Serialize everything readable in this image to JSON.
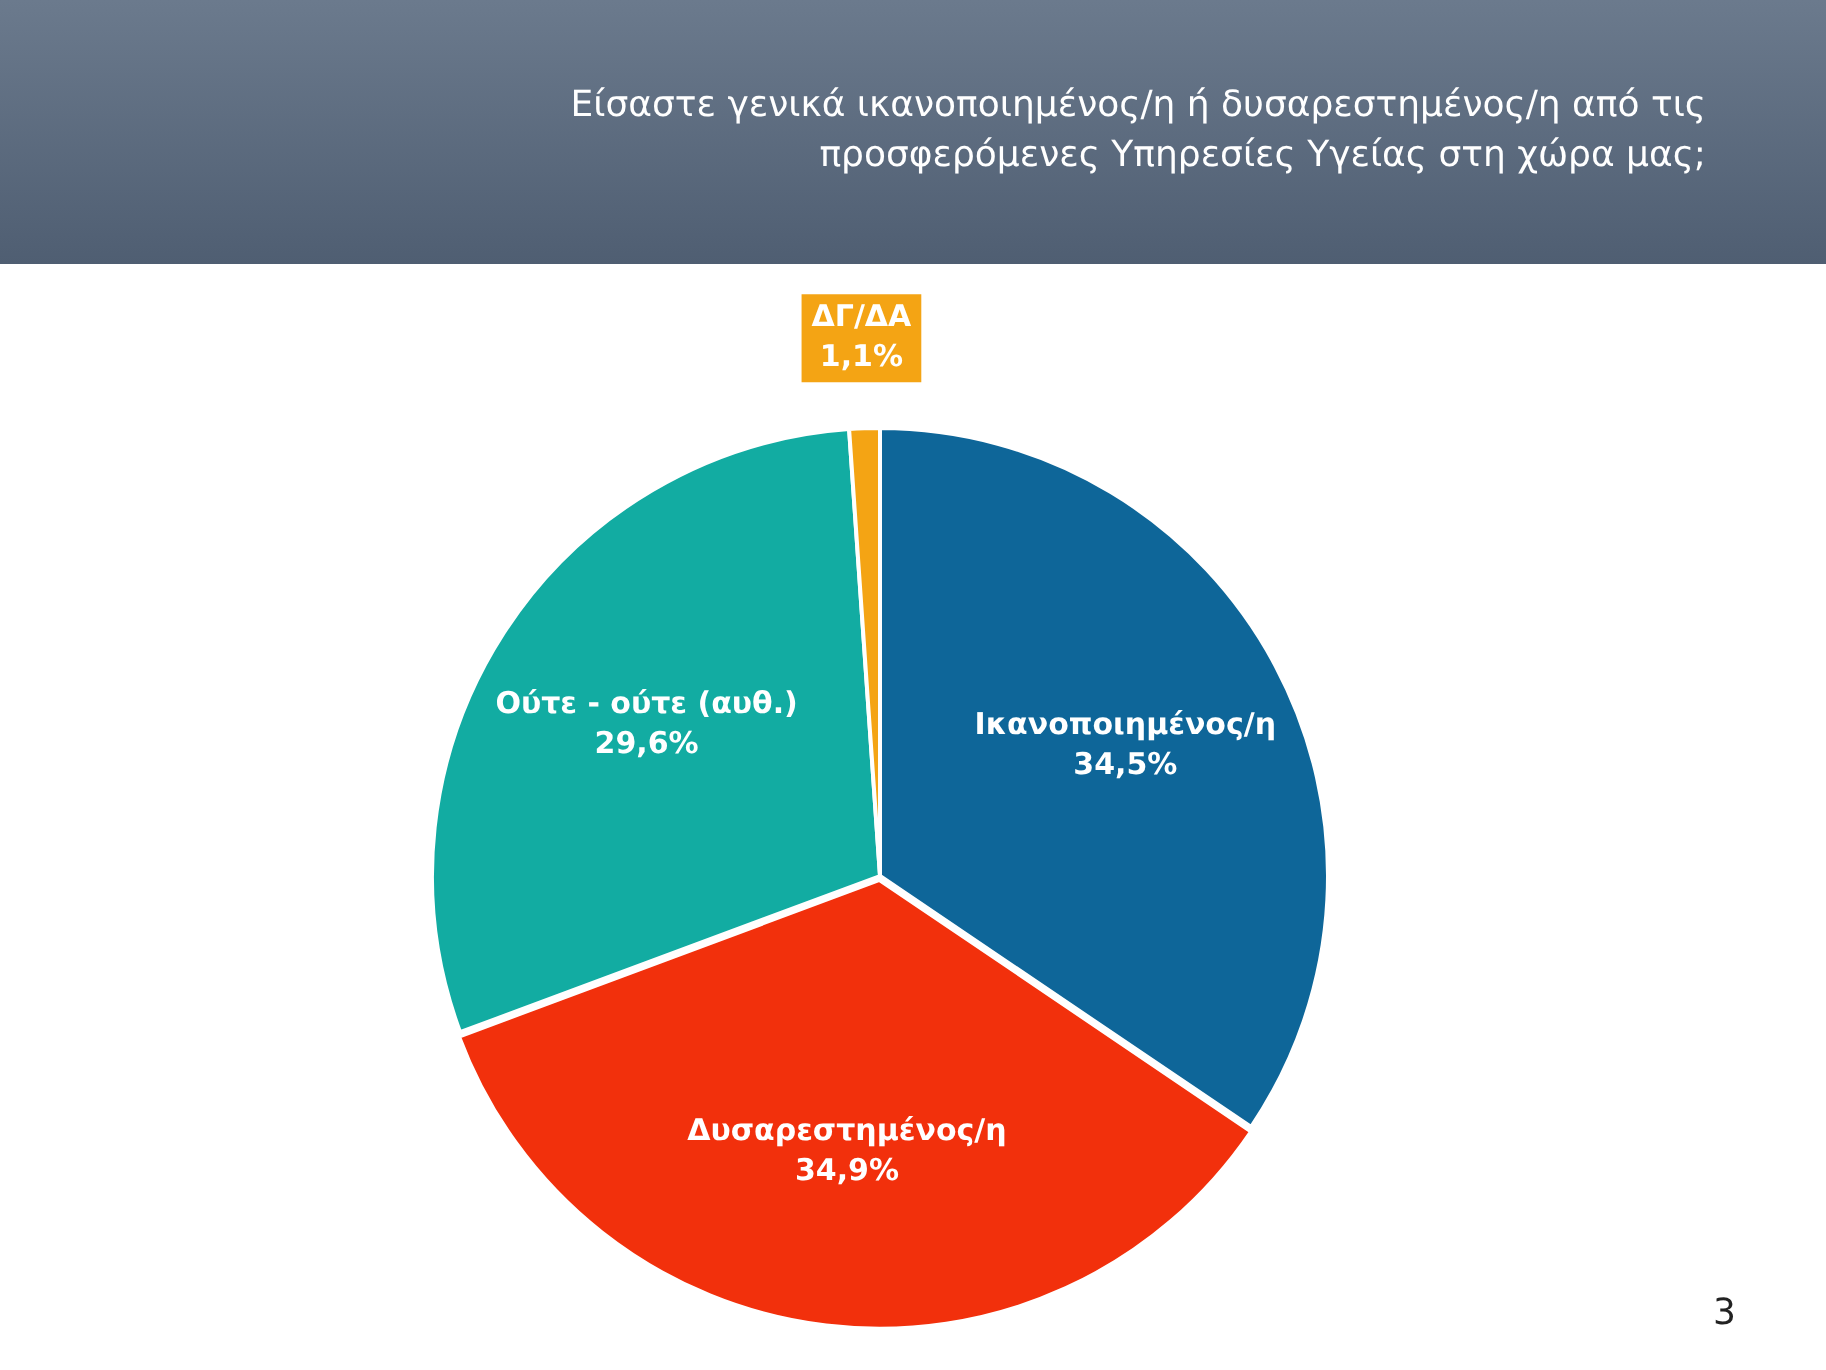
{
  "chart_data": {
    "type": "pie",
    "title": "Είσαστε γενικά ικανοποιημένος/η ή δυσαρεστημένος/η από τις προσφερόμενες Υπηρεσίες Υγείας στη χώρα μας;",
    "categories": [
      "Ικανοποιημένος/η",
      "Δυσαρεστημένος/η",
      "Ούτε - ούτε (αυθ.)",
      "ΔΓ/ΔΑ"
    ],
    "values": [
      34.5,
      34.9,
      29.6,
      1.1
    ],
    "colors": [
      "#0e6699",
      "#f2300c",
      "#12aca2",
      "#f4a414"
    ],
    "value_labels": [
      "34,5%",
      "34,9%",
      "29,6%",
      "1,1%"
    ],
    "annotations": [
      "3"
    ]
  }
}
